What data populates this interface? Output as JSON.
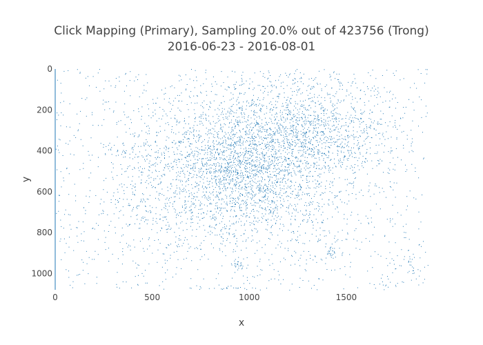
{
  "chart_data": {
    "type": "scatter",
    "title_line1": "Click Mapping (Primary), Sampling 20.0% out of 423756 (Trong)",
    "title_line2": "2016-06-23 - 2016-08-01",
    "xlabel": "x",
    "ylabel": "y",
    "xlim": [
      0,
      1920
    ],
    "ylim": [
      1080,
      0
    ],
    "y_reversed": true,
    "x_ticks": [
      0,
      500,
      1000,
      1500
    ],
    "y_ticks": [
      0,
      200,
      400,
      600,
      800,
      1000
    ],
    "grid": false,
    "legend": "none",
    "total_points": 423756,
    "sampling_percent": 20.0,
    "marker_color": "#1f77b4",
    "density_clusters": [
      {
        "name": "main-blob",
        "cx": 920,
        "cy": 510,
        "sx": 330,
        "sy": 200,
        "weight": 0.42
      },
      {
        "name": "upper-right-blob",
        "cx": 1280,
        "cy": 300,
        "sx": 230,
        "sy": 140,
        "weight": 0.22
      },
      {
        "name": "center-core",
        "cx": 980,
        "cy": 480,
        "sx": 150,
        "sy": 150,
        "weight": 0.12
      },
      {
        "name": "bottom-spot-1",
        "cx": 945,
        "cy": 960,
        "sx": 14,
        "sy": 14,
        "weight": 0.006
      },
      {
        "name": "bottom-spot-2",
        "cx": 1420,
        "cy": 900,
        "sx": 14,
        "sy": 12,
        "weight": 0.003
      },
      {
        "name": "bottom-right-cluster",
        "cx": 1820,
        "cy": 960,
        "sx": 60,
        "sy": 50,
        "weight": 0.008
      },
      {
        "name": "top-right-corner",
        "cx": 1900,
        "cy": 10,
        "sx": 15,
        "sy": 15,
        "weight": 0.002
      },
      {
        "name": "bottom-edge-band",
        "cx": 850,
        "cy": 1072,
        "sx": 150,
        "sy": 4,
        "weight": 0.005
      }
    ],
    "uniform_noise_weight": 0.18
  }
}
